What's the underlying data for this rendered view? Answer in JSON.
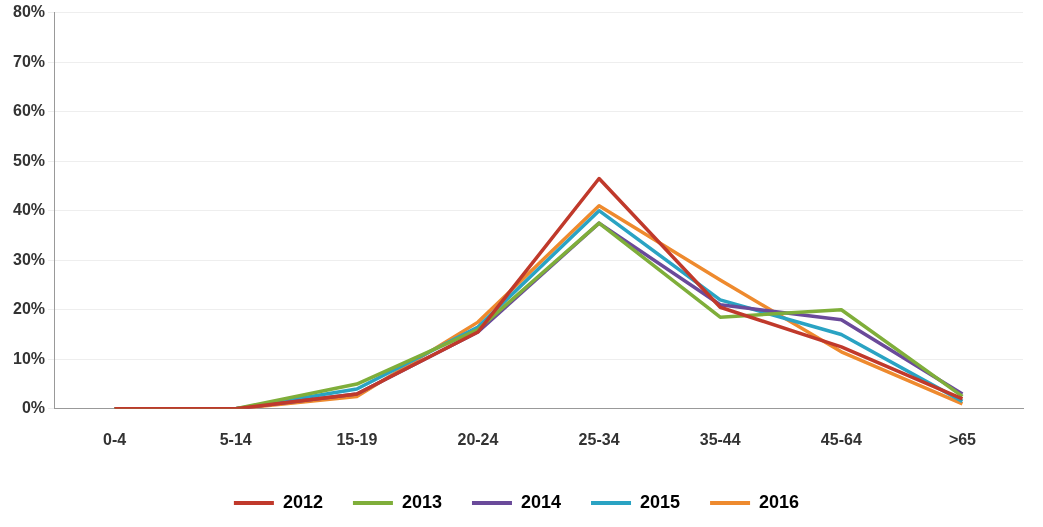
{
  "chart_data": {
    "type": "line",
    "categories": [
      "0-4",
      "5-14",
      "15-19",
      "20-24",
      "25-34",
      "35-44",
      "45-64",
      ">65"
    ],
    "series": [
      {
        "name": "2012",
        "color": "#c0392b",
        "values": [
          0,
          0,
          3,
          15.5,
          46.5,
          20.5,
          12.5,
          2
        ]
      },
      {
        "name": "2013",
        "color": "#7fae3a",
        "values": [
          0,
          0,
          5,
          16,
          37.5,
          18.5,
          20,
          2.5
        ]
      },
      {
        "name": "2014",
        "color": "#6a4a9a",
        "values": [
          0,
          0,
          3,
          15.5,
          37.5,
          21,
          18,
          3
        ]
      },
      {
        "name": "2015",
        "color": "#2aa3c3",
        "values": [
          0,
          0,
          4,
          16.5,
          40,
          22,
          15,
          1.5
        ]
      },
      {
        "name": "2016",
        "color": "#ee8a2e",
        "values": [
          0,
          0,
          2.5,
          17.5,
          41,
          26,
          11.5,
          1
        ]
      }
    ],
    "ylim": [
      0,
      80
    ],
    "yticks": [
      {
        "value": 0,
        "label": "0%"
      },
      {
        "value": 10,
        "label": "10%"
      },
      {
        "value": 20,
        "label": "20%"
      },
      {
        "value": 30,
        "label": "30%"
      },
      {
        "value": 40,
        "label": "40%"
      },
      {
        "value": 50,
        "label": "50%"
      },
      {
        "value": 60,
        "label": "60%"
      },
      {
        "value": 70,
        "label": "70%"
      },
      {
        "value": 80,
        "label": "80%"
      }
    ],
    "grid": "y",
    "legend": "bottom",
    "marker": "none",
    "line_style": "solid"
  }
}
